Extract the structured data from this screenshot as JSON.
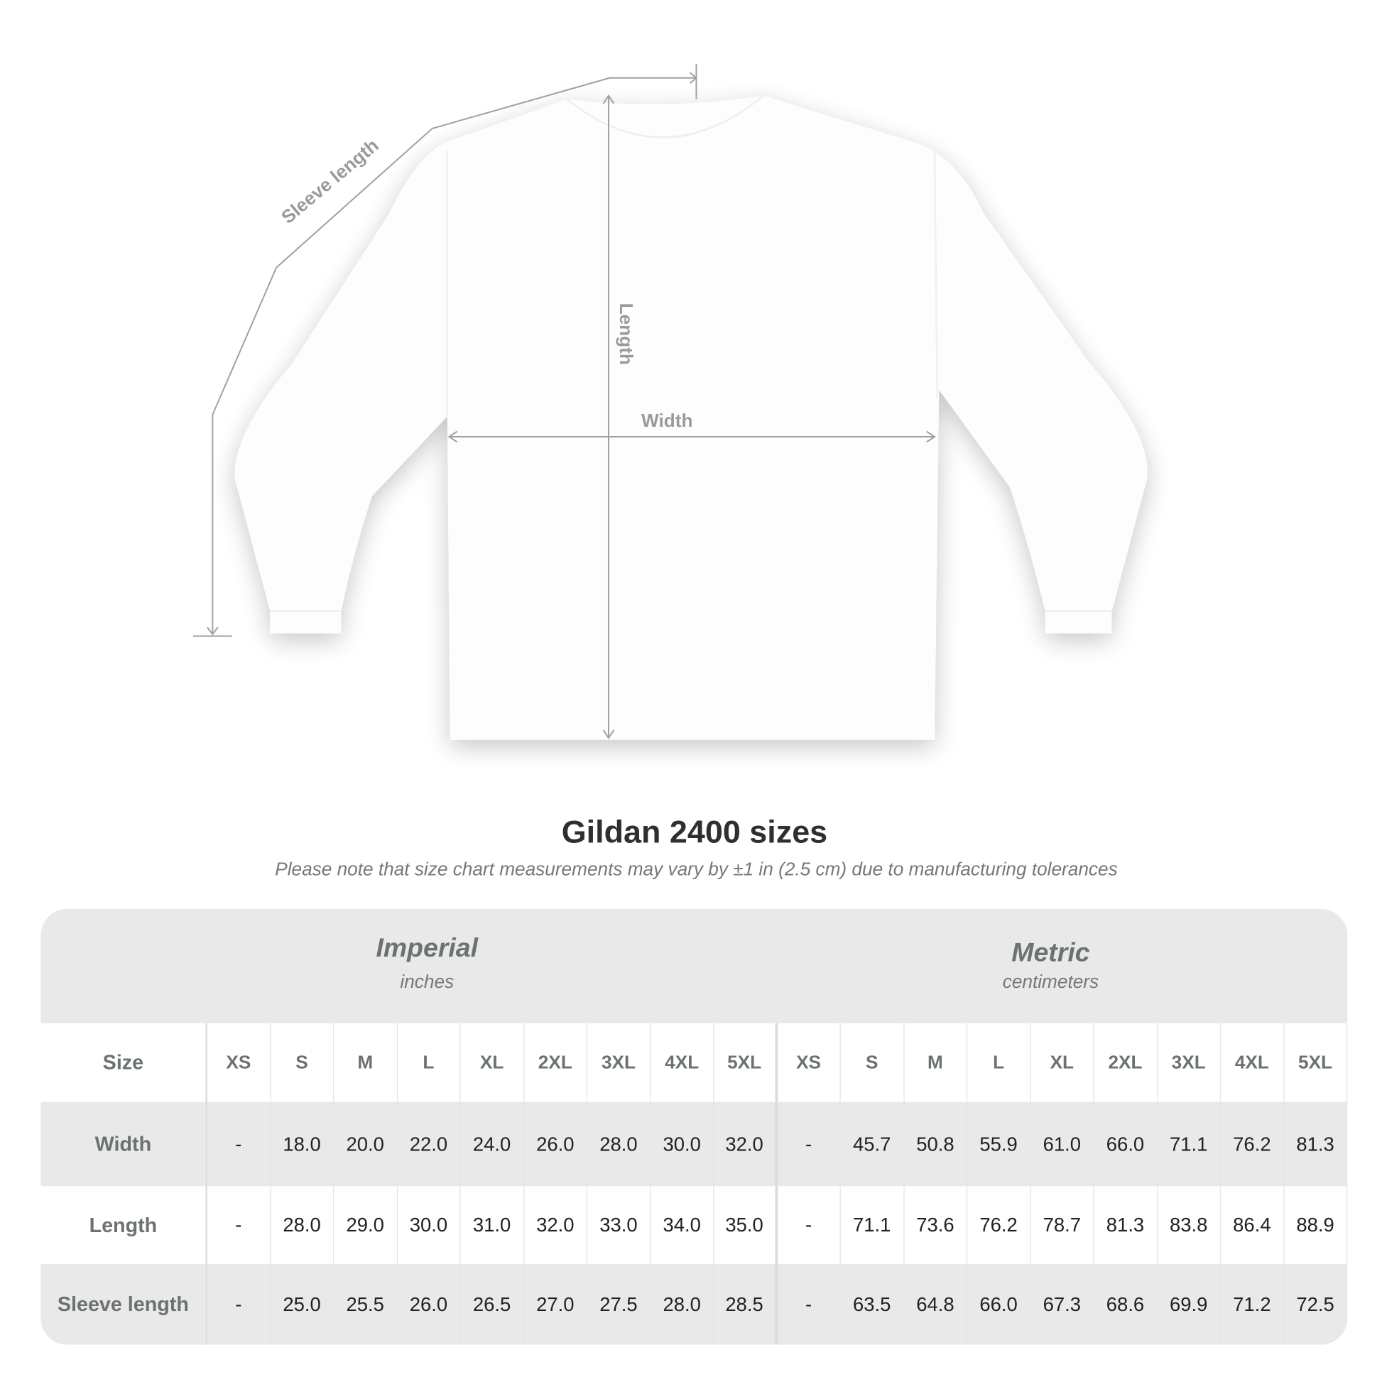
{
  "diagram": {
    "labels": {
      "sleeve": "Sleeve length",
      "length": "Length",
      "width": "Width"
    },
    "line_color": "#a0a0a0"
  },
  "title": "Gildan 2400 sizes",
  "subtitle": "Please note that size chart measurements may vary by ±1 in (2.5 cm) due to manufacturing tolerances",
  "table": {
    "imperial": {
      "name": "Imperial",
      "unit": "inches"
    },
    "metric": {
      "name": "Metric",
      "unit": "centimeters"
    },
    "size_label": "Size",
    "sizes": [
      "XS",
      "S",
      "M",
      "L",
      "XL",
      "2XL",
      "3XL",
      "4XL",
      "5XL",
      "XS",
      "S",
      "M",
      "L",
      "XL",
      "2XL",
      "3XL",
      "4XL",
      "5XL"
    ],
    "rows": [
      {
        "label": "Width",
        "values": [
          "-",
          "18.0",
          "20.0",
          "22.0",
          "24.0",
          "26.0",
          "28.0",
          "30.0",
          "32.0",
          "-",
          "45.7",
          "50.8",
          "55.9",
          "61.0",
          "66.0",
          "71.1",
          "76.2",
          "81.3"
        ]
      },
      {
        "label": "Length",
        "values": [
          "-",
          "28.0",
          "29.0",
          "30.0",
          "31.0",
          "32.0",
          "33.0",
          "34.0",
          "35.0",
          "-",
          "71.1",
          "73.6",
          "76.2",
          "78.7",
          "81.3",
          "83.8",
          "86.4",
          "88.9"
        ]
      },
      {
        "label": "Sleeve length",
        "values": [
          "-",
          "25.0",
          "25.5",
          "26.0",
          "26.5",
          "27.0",
          "27.5",
          "28.0",
          "28.5",
          "-",
          "63.5",
          "64.8",
          "66.0",
          "67.3",
          "68.6",
          "69.9",
          "71.2",
          "72.5"
        ]
      }
    ]
  }
}
